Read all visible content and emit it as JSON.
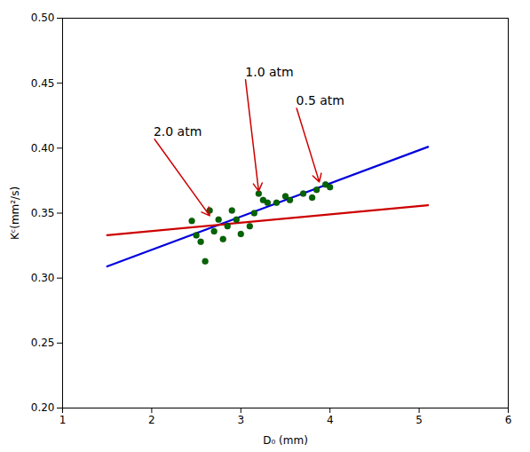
{
  "chart_data": {
    "type": "line",
    "xlabel": "D₀ (mm)",
    "ylabel": "Kᶜ(mm²/s)",
    "xlim": [
      1,
      6
    ],
    "ylim": [
      0.2,
      0.5
    ],
    "xticks": [
      1,
      2,
      3,
      4,
      5,
      6
    ],
    "yticks": [
      {
        "value": 0.2,
        "label": "0.20"
      },
      0.25,
      {
        "value": 0.3,
        "label": "0.30"
      },
      0.35,
      {
        "value": 0.4,
        "label": "0.40"
      },
      0.45,
      {
        "value": 0.5,
        "label": "0.50"
      }
    ],
    "grid": false,
    "series": [
      {
        "type": "line",
        "color": "#0000dd",
        "x": [
          1.5,
          5.1
        ],
        "values": [
          0.309,
          0.401
        ]
      },
      {
        "type": "line",
        "color": "#cc0000",
        "x": [
          1.5,
          5.1
        ],
        "values": [
          0.333,
          0.356
        ]
      },
      {
        "type": "scatter",
        "color": "#006600",
        "x": [
          2.45,
          2.5,
          2.55,
          2.6,
          2.65,
          2.7,
          2.75,
          2.8,
          2.85,
          2.9,
          2.95,
          3.0,
          3.1,
          3.15,
          3.2,
          3.25,
          3.3,
          3.4,
          3.5,
          3.55,
          3.7,
          3.8,
          3.85,
          3.95,
          4.0
        ],
        "values": [
          0.344,
          0.333,
          0.328,
          0.313,
          0.352,
          0.336,
          0.345,
          0.33,
          0.34,
          0.352,
          0.345,
          0.334,
          0.34,
          0.35,
          0.365,
          0.36,
          0.358,
          0.358,
          0.363,
          0.36,
          0.365,
          0.362,
          0.368,
          0.372,
          0.37
        ]
      }
    ],
    "annotations": [
      {
        "text": "2.0 atm",
        "x": 2.02,
        "y": 0.408,
        "arrow_x": 2.65,
        "arrow_y": 0.348,
        "color": "#cc0000"
      },
      {
        "text": "1.0 atm",
        "x": 3.05,
        "y": 0.454,
        "arrow_x": 3.2,
        "arrow_y": 0.367,
        "color": "#cc0000"
      },
      {
        "text": "0.5 atm",
        "x": 3.62,
        "y": 0.432,
        "arrow_x": 3.88,
        "arrow_y": 0.374,
        "color": "#cc0000"
      }
    ]
  }
}
